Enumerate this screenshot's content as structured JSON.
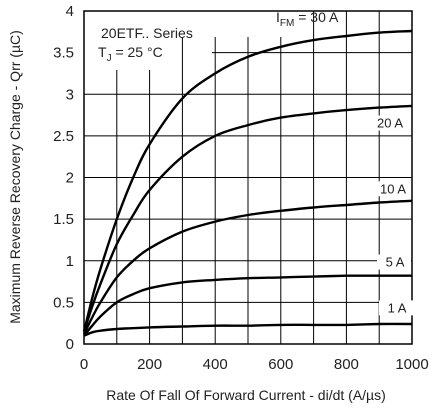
{
  "chart_data": {
    "type": "line",
    "xlabel": "Rate Of Fall Of Forward Current - di/dt (A/µs)",
    "ylabel": "Maximum Reverse Recovery Charge - Qrr (µC)",
    "xlim": [
      0,
      1000
    ],
    "ylim": [
      0,
      4
    ],
    "x_ticks": [
      "0",
      "200",
      "400",
      "600",
      "800",
      "1000"
    ],
    "y_ticks": [
      "0",
      "0.5",
      "1",
      "1.5",
      "2",
      "2.5",
      "3",
      "3.5",
      "4"
    ],
    "grid": true,
    "annotations": {
      "series_title": "20ETF.. Series",
      "temperature": "T",
      "temperature_sub": "J",
      "temperature_value": " = 25 °C",
      "param_prefix": "I",
      "param_sub": "FM",
      "param_value": " = 30 A"
    },
    "series": [
      {
        "name": "30 A",
        "x": [
          0,
          25,
          50,
          100,
          150,
          200,
          300,
          400,
          500,
          600,
          700,
          800,
          900,
          1000
        ],
        "y": [
          0.15,
          0.55,
          0.9,
          1.5,
          2.0,
          2.4,
          2.95,
          3.25,
          3.45,
          3.57,
          3.65,
          3.7,
          3.74,
          3.76
        ]
      },
      {
        "name": "20 A",
        "x": [
          0,
          25,
          50,
          100,
          150,
          200,
          300,
          400,
          500,
          600,
          700,
          800,
          900,
          1000
        ],
        "y": [
          0.15,
          0.45,
          0.72,
          1.2,
          1.55,
          1.85,
          2.25,
          2.5,
          2.63,
          2.72,
          2.77,
          2.81,
          2.84,
          2.86
        ]
      },
      {
        "name": "10 A",
        "x": [
          0,
          25,
          50,
          100,
          150,
          200,
          300,
          400,
          500,
          600,
          700,
          800,
          900,
          1000
        ],
        "y": [
          0.12,
          0.32,
          0.5,
          0.8,
          1.0,
          1.15,
          1.35,
          1.47,
          1.55,
          1.6,
          1.64,
          1.67,
          1.7,
          1.72
        ]
      },
      {
        "name": "5 A",
        "x": [
          0,
          25,
          50,
          100,
          150,
          200,
          300,
          400,
          500,
          600,
          700,
          800,
          900,
          1000
        ],
        "y": [
          0.1,
          0.22,
          0.33,
          0.5,
          0.6,
          0.67,
          0.74,
          0.77,
          0.79,
          0.8,
          0.81,
          0.82,
          0.82,
          0.82
        ]
      },
      {
        "name": "1 A",
        "x": [
          0,
          25,
          50,
          100,
          200,
          300,
          400,
          500,
          600,
          700,
          800,
          900,
          1000
        ],
        "y": [
          0.1,
          0.14,
          0.16,
          0.18,
          0.2,
          0.21,
          0.22,
          0.22,
          0.23,
          0.23,
          0.23,
          0.24,
          0.24
        ]
      }
    ]
  }
}
